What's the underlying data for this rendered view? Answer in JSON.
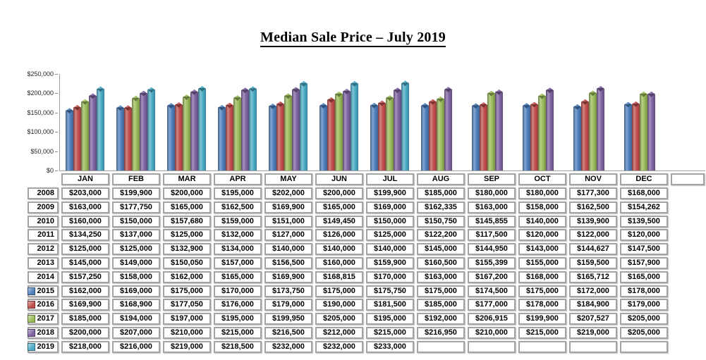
{
  "title": {
    "text": "Median Sale Price – July 2019"
  },
  "chart_data": {
    "type": "bar",
    "title": "Median Sale Price – July 2019",
    "categories": [
      "JAN",
      "FEB",
      "MAR",
      "APR",
      "MAY",
      "JUN",
      "JUL",
      "AUG",
      "SEP",
      "OCT",
      "NOV",
      "DEC"
    ],
    "series": [
      {
        "name": "2015",
        "color": "#4F81BD",
        "values": [
          162000,
          169000,
          175000,
          170000,
          173750,
          175000,
          175750,
          175000,
          174500,
          175000,
          172000,
          178000
        ]
      },
      {
        "name": "2016",
        "color": "#C0504D",
        "values": [
          169900,
          168900,
          177050,
          176000,
          179000,
          190000,
          181500,
          185000,
          177000,
          178000,
          184900,
          179000
        ]
      },
      {
        "name": "2017",
        "color": "#9BBB59",
        "values": [
          185000,
          194000,
          197000,
          195000,
          199950,
          205000,
          195000,
          192000,
          206915,
          199900,
          207527,
          205000
        ]
      },
      {
        "name": "2018",
        "color": "#8064A2",
        "values": [
          200000,
          207000,
          210000,
          215000,
          216500,
          212000,
          215000,
          216950,
          210000,
          215000,
          219000,
          205000
        ]
      },
      {
        "name": "2019",
        "color": "#4BACC6",
        "values": [
          218000,
          216000,
          219000,
          218500,
          232000,
          232000,
          233000,
          null,
          null,
          null,
          null,
          null
        ]
      }
    ],
    "ylim": [
      0,
      250000
    ],
    "yticks": [
      "$0",
      "$50,000",
      "$100,000",
      "$150,000",
      "$200,000",
      "$250,000"
    ],
    "grid": false,
    "legend_position": "table-row-labels"
  },
  "table": {
    "columns": [
      "JAN",
      "FEB",
      "MAR",
      "APR",
      "MAY",
      "JUN",
      "JUL",
      "AUG",
      "SEP",
      "OCT",
      "NOV",
      "DEC"
    ],
    "rows": [
      {
        "year": "2008",
        "marker": null,
        "values": [
          "$203,000",
          "$199,900",
          "$200,000",
          "$195,000",
          "$202,000",
          "$200,000",
          "$199,900",
          "$185,000",
          "$180,000",
          "$180,000",
          "$177,300",
          "$168,000"
        ]
      },
      {
        "year": "2009",
        "marker": null,
        "values": [
          "$163,000",
          "$177,750",
          "$165,000",
          "$162,500",
          "$169,900",
          "$165,000",
          "$169,000",
          "$162,335",
          "$163,000",
          "$158,000",
          "$162,500",
          "$154,262"
        ]
      },
      {
        "year": "2010",
        "marker": null,
        "values": [
          "$160,000",
          "$150,000",
          "$157,680",
          "$159,000",
          "$151,000",
          "$149,450",
          "$150,000",
          "$150,750",
          "$145,855",
          "$140,000",
          "$139,900",
          "$139,500"
        ]
      },
      {
        "year": "2011",
        "marker": null,
        "values": [
          "$134,250",
          "$137,000",
          "$125,000",
          "$132,000",
          "$127,000",
          "$126,000",
          "$125,000",
          "$122,200",
          "$117,500",
          "$120,000",
          "$122,000",
          "$120,000"
        ]
      },
      {
        "year": "2012",
        "marker": null,
        "values": [
          "$125,000",
          "$125,000",
          "$132,900",
          "$134,000",
          "$140,000",
          "$140,000",
          "$140,000",
          "$145,000",
          "$144,950",
          "$143,000",
          "$144,627",
          "$147,500"
        ]
      },
      {
        "year": "2013",
        "marker": null,
        "values": [
          "$145,000",
          "$149,000",
          "$150,050",
          "$157,000",
          "$156,500",
          "$160,000",
          "$159,900",
          "$160,500",
          "$155,399",
          "$155,000",
          "$159,500",
          "$157,900"
        ]
      },
      {
        "year": "2014",
        "marker": null,
        "values": [
          "$157,250",
          "$158,000",
          "$162,000",
          "$165,000",
          "$169,900",
          "$168,815",
          "$170,000",
          "$163,000",
          "$167,200",
          "$168,000",
          "$165,712",
          "$165,000"
        ]
      },
      {
        "year": "2015",
        "marker": "#4F81BD",
        "values": [
          "$162,000",
          "$169,000",
          "$175,000",
          "$170,000",
          "$173,750",
          "$175,000",
          "$175,750",
          "$175,000",
          "$174,500",
          "$175,000",
          "$172,000",
          "$178,000"
        ]
      },
      {
        "year": "2016",
        "marker": "#C0504D",
        "values": [
          "$169,900",
          "$168,900",
          "$177,050",
          "$176,000",
          "$179,000",
          "$190,000",
          "$181,500",
          "$185,000",
          "$177,000",
          "$178,000",
          "$184,900",
          "$179,000"
        ]
      },
      {
        "year": "2017",
        "marker": "#9BBB59",
        "values": [
          "$185,000",
          "$194,000",
          "$197,000",
          "$195,000",
          "$199,950",
          "$205,000",
          "$195,000",
          "$192,000",
          "$206,915",
          "$199,900",
          "$207,527",
          "$205,000"
        ]
      },
      {
        "year": "2018",
        "marker": "#8064A2",
        "values": [
          "$200,000",
          "$207,000",
          "$210,000",
          "$215,000",
          "$216,500",
          "$212,000",
          "$215,000",
          "$216,950",
          "$210,000",
          "$215,000",
          "$219,000",
          "$205,000"
        ]
      },
      {
        "year": "2019",
        "marker": "#4BACC6",
        "values": [
          "$218,000",
          "$216,000",
          "$219,000",
          "$218,500",
          "$232,000",
          "$232,000",
          "$233,000",
          "",
          "",
          "",
          "",
          ""
        ]
      }
    ]
  }
}
